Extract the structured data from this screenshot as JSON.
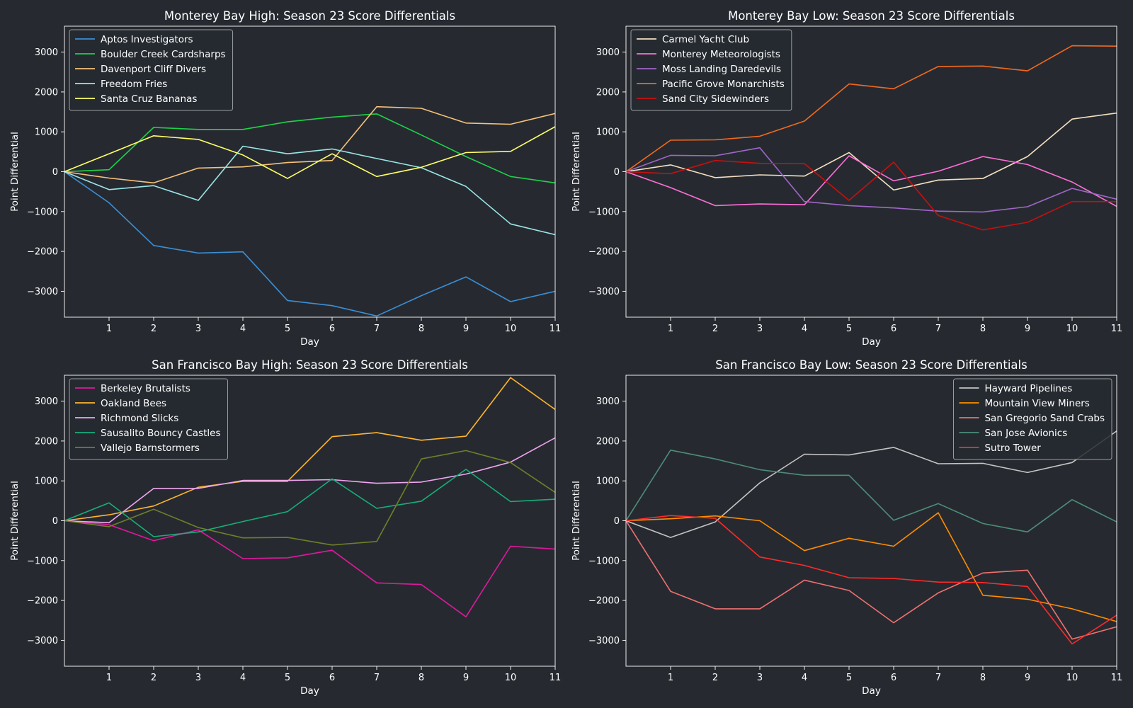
{
  "chart_data": [
    {
      "type": "line",
      "title": "Monterey Bay High: Season 23 Score Differentials",
      "xlabel": "Day",
      "ylabel": "Point Differential",
      "x": [
        0,
        1,
        2,
        3,
        4,
        5,
        6,
        7,
        8,
        9,
        10,
        11
      ],
      "xlim": [
        0,
        11
      ],
      "ylim": [
        -3650,
        3650
      ],
      "xticks": [
        1,
        2,
        3,
        4,
        5,
        6,
        7,
        8,
        9,
        10,
        11
      ],
      "yticks": [
        -3000,
        -2000,
        -1000,
        0,
        1000,
        2000,
        3000
      ],
      "ytick_labels": [
        "−3000",
        "−2000",
        "−1000",
        "0",
        "1000",
        "2000",
        "3000"
      ],
      "legend": "top-left",
      "series": [
        {
          "name": "Aptos Investigators",
          "color": "#3b8fd6",
          "values": [
            0,
            -780,
            -1850,
            -2040,
            -2010,
            -3230,
            -3360,
            -3620,
            -3110,
            -2640,
            -3260,
            -3000
          ]
        },
        {
          "name": "Boulder Creek Cardsharps",
          "color": "#1fd24a",
          "values": [
            0,
            50,
            1110,
            1060,
            1060,
            1250,
            1370,
            1450,
            920,
            380,
            -120,
            -280
          ]
        },
        {
          "name": "Davenport Cliff Divers",
          "color": "#f6c27a",
          "values": [
            0,
            -160,
            -280,
            90,
            120,
            230,
            280,
            1630,
            1590,
            1220,
            1190,
            1460
          ]
        },
        {
          "name": "Freedom Fries",
          "color": "#9ae6e6",
          "values": [
            0,
            -450,
            -350,
            -720,
            640,
            450,
            570,
            330,
            100,
            -370,
            -1310,
            -1580
          ]
        },
        {
          "name": "Santa Cruz Bananas",
          "color": "#ffff66",
          "values": [
            0,
            450,
            900,
            810,
            420,
            -170,
            450,
            -120,
            110,
            480,
            510,
            1130
          ]
        }
      ]
    },
    {
      "type": "line",
      "title": "Monterey Bay Low: Season 23 Score Differentials",
      "xlabel": "Day",
      "ylabel": "Point Differential",
      "x": [
        0,
        1,
        2,
        3,
        4,
        5,
        6,
        7,
        8,
        9,
        10,
        11
      ],
      "xlim": [
        0,
        11
      ],
      "ylim": [
        -3650,
        3650
      ],
      "xticks": [
        1,
        2,
        3,
        4,
        5,
        6,
        7,
        8,
        9,
        10,
        11
      ],
      "yticks": [
        -3000,
        -2000,
        -1000,
        0,
        1000,
        2000,
        3000
      ],
      "ytick_labels": [
        "−3000",
        "−2000",
        "−1000",
        "0",
        "1000",
        "2000",
        "3000"
      ],
      "legend": "top-left",
      "series": [
        {
          "name": "Carmel Yacht Club",
          "color": "#f5dfc0",
          "values": [
            0,
            170,
            -150,
            -80,
            -110,
            480,
            -460,
            -210,
            -170,
            380,
            1320,
            1470
          ]
        },
        {
          "name": "Monterey Meteorologists",
          "color": "#ff6fd8",
          "values": [
            0,
            -400,
            -850,
            -810,
            -830,
            400,
            -230,
            10,
            380,
            180,
            -260,
            -870
          ]
        },
        {
          "name": "Moss Landing Daredevils",
          "color": "#a066c8",
          "values": [
            0,
            410,
            400,
            600,
            -750,
            -850,
            -910,
            -990,
            -1010,
            -880,
            -420,
            -690
          ]
        },
        {
          "name": "Pacific Grove Monarchists",
          "color": "#f2691e",
          "values": [
            0,
            790,
            800,
            890,
            1270,
            2200,
            2080,
            2640,
            2650,
            2530,
            3160,
            3150
          ]
        },
        {
          "name": "Sand City Sidewinders",
          "color": "#c80f0f",
          "values": [
            0,
            -50,
            280,
            210,
            200,
            -720,
            240,
            -1100,
            -1460,
            -1270,
            -750,
            -750
          ]
        }
      ]
    },
    {
      "type": "line",
      "title": "San Francisco Bay High: Season 23 Score Differentials",
      "xlabel": "Day",
      "ylabel": "Point Differential",
      "x": [
        0,
        1,
        2,
        3,
        4,
        5,
        6,
        7,
        8,
        9,
        10,
        11
      ],
      "xlim": [
        0,
        11
      ],
      "ylim": [
        -3650,
        3650
      ],
      "xticks": [
        1,
        2,
        3,
        4,
        5,
        6,
        7,
        8,
        9,
        10,
        11
      ],
      "yticks": [
        -3000,
        -2000,
        -1000,
        0,
        1000,
        2000,
        3000
      ],
      "ytick_labels": [
        "−3000",
        "−2000",
        "−1000",
        "0",
        "1000",
        "2000",
        "3000"
      ],
      "legend": "top-left",
      "series": [
        {
          "name": "Berkeley Brutalists",
          "color": "#e0199e",
          "values": [
            0,
            -100,
            -500,
            -230,
            -950,
            -930,
            -740,
            -1560,
            -1600,
            -2410,
            -640,
            -710
          ]
        },
        {
          "name": "Oakland Bees",
          "color": "#ffb52e",
          "values": [
            0,
            150,
            370,
            840,
            990,
            990,
            2110,
            2210,
            2020,
            2120,
            3590,
            2790
          ]
        },
        {
          "name": "Richmond Slicks",
          "color": "#f0a6f0",
          "values": [
            0,
            -50,
            810,
            810,
            1010,
            1010,
            1030,
            940,
            970,
            1170,
            1470,
            2080
          ]
        },
        {
          "name": "Sausalito Bouncy Castles",
          "color": "#17ae7b",
          "values": [
            0,
            450,
            -400,
            -280,
            -20,
            230,
            1050,
            310,
            490,
            1290,
            480,
            540
          ]
        },
        {
          "name": "Vallejo Barnstormers",
          "color": "#6f7f2a",
          "values": [
            0,
            -150,
            290,
            -170,
            -430,
            -420,
            -610,
            -520,
            1550,
            1760,
            1460,
            710
          ]
        }
      ]
    },
    {
      "type": "line",
      "title": "San Francisco Bay Low: Season 23 Score Differentials",
      "xlabel": "Day",
      "ylabel": "Point Differential",
      "x": [
        0,
        1,
        2,
        3,
        4,
        5,
        6,
        7,
        8,
        9,
        10,
        11
      ],
      "xlim": [
        0,
        11
      ],
      "ylim": [
        -3650,
        3650
      ],
      "xticks": [
        1,
        2,
        3,
        4,
        5,
        6,
        7,
        8,
        9,
        10,
        11
      ],
      "yticks": [
        -3000,
        -2000,
        -1000,
        0,
        1000,
        2000,
        3000
      ],
      "ytick_labels": [
        "−3000",
        "−2000",
        "−1000",
        "0",
        "1000",
        "2000",
        "3000"
      ],
      "legend": "top-right",
      "series": [
        {
          "name": "Hayward Pipelines",
          "color": "#c4c4c4",
          "values": [
            0,
            -420,
            -30,
            950,
            1670,
            1650,
            1840,
            1430,
            1440,
            1210,
            1460,
            2250
          ]
        },
        {
          "name": "Mountain View Miners",
          "color": "#ff8c00",
          "values": [
            0,
            50,
            120,
            0,
            -750,
            -440,
            -640,
            200,
            -1870,
            -1970,
            -2210,
            -2530
          ]
        },
        {
          "name": "San Gregorio Sand Crabs",
          "color": "#f07070",
          "values": [
            0,
            -1770,
            -2210,
            -2210,
            -1490,
            -1750,
            -2560,
            -1810,
            -1310,
            -1240,
            -2970,
            -2660
          ]
        },
        {
          "name": "San Jose Avionics",
          "color": "#4e8c7a",
          "values": [
            0,
            1770,
            1550,
            1280,
            1140,
            1140,
            10,
            430,
            -70,
            -280,
            530,
            -30
          ]
        },
        {
          "name": "Sutro Tower",
          "color": "#ff2a2a",
          "values": [
            0,
            130,
            60,
            -910,
            -1120,
            -1430,
            -1450,
            -1540,
            -1550,
            -1650,
            -3090,
            -2370
          ]
        }
      ]
    }
  ]
}
